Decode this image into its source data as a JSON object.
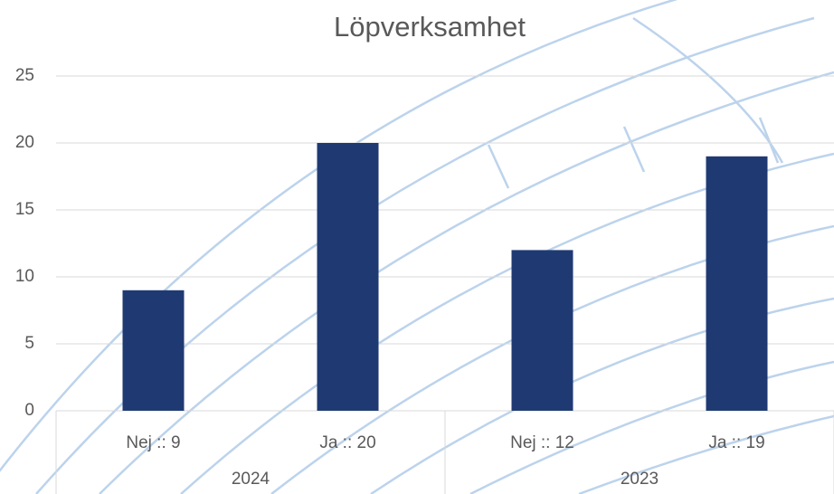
{
  "chart_data": {
    "type": "bar",
    "title": "Löpverksamhet",
    "groups": [
      {
        "name": "2024",
        "categories": [
          "Nej :: 9",
          "Ja :: 20"
        ],
        "values": [
          9,
          20
        ]
      },
      {
        "name": "2023",
        "categories": [
          "Nej :: 12",
          "Ja :: 19"
        ],
        "values": [
          12,
          19
        ]
      }
    ],
    "color": "#1f3a73",
    "ylim": [
      0,
      25
    ],
    "yticks": [
      0,
      5,
      10,
      15,
      20,
      25
    ],
    "grid": true
  }
}
